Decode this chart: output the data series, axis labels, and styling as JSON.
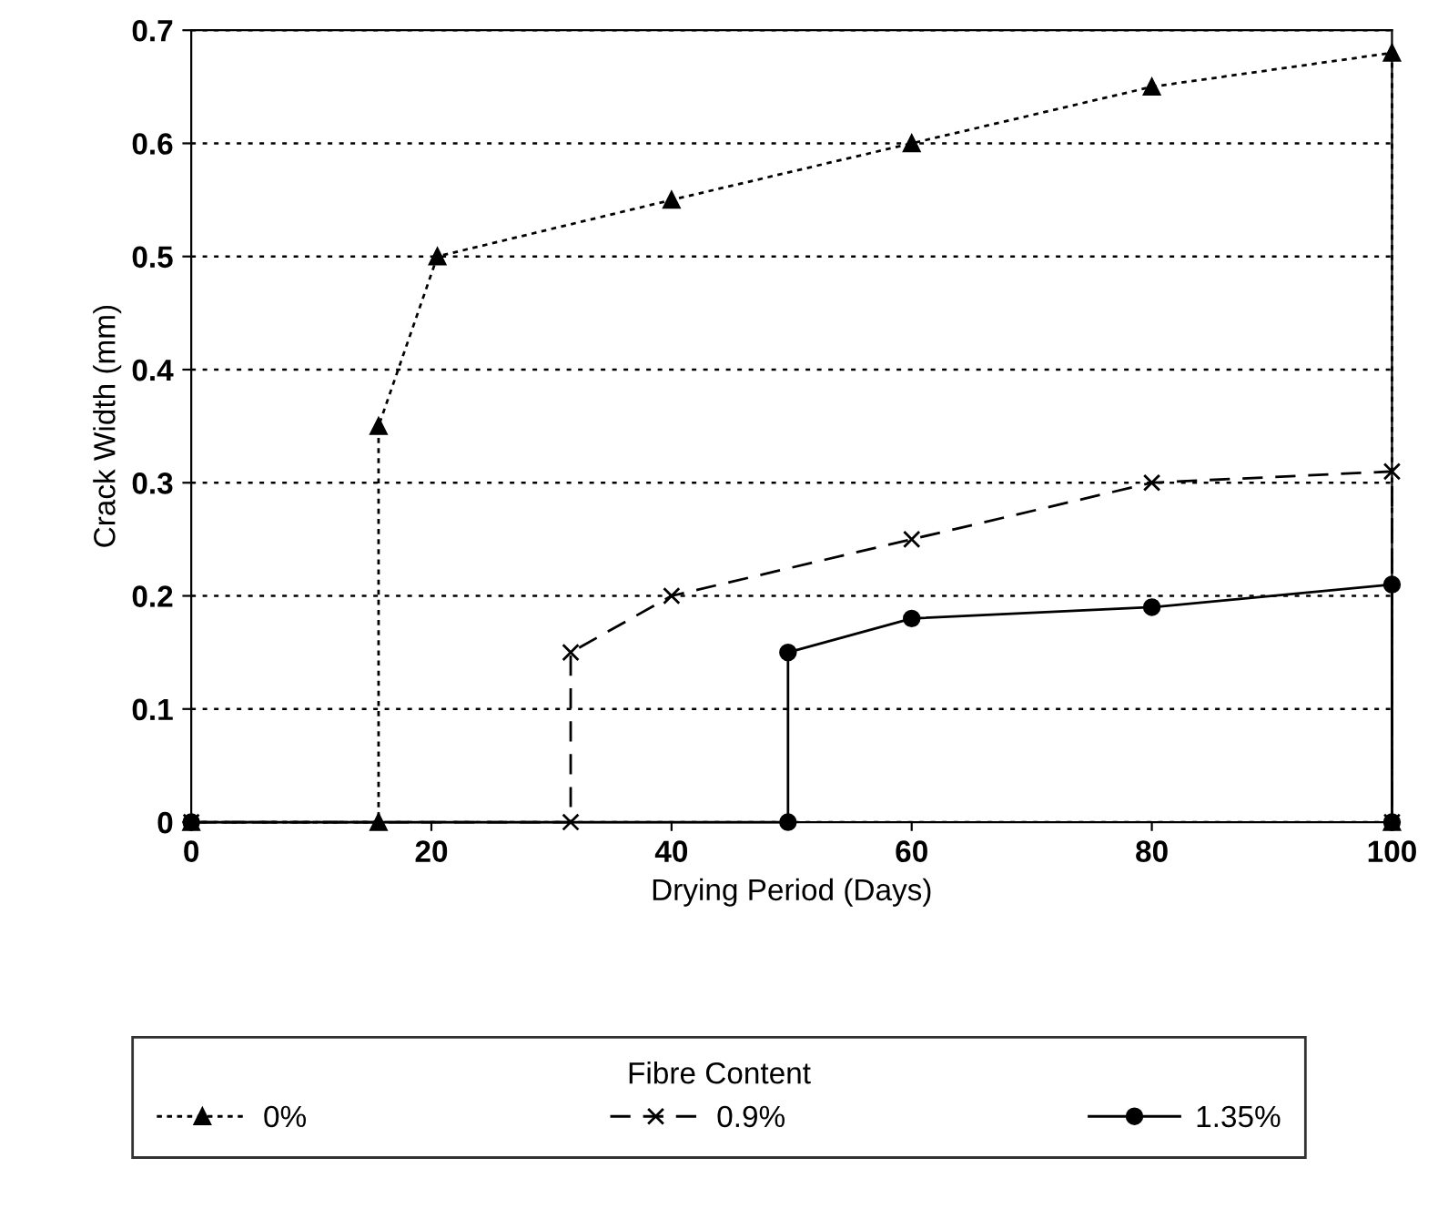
{
  "chart_data": {
    "type": "line",
    "xlabel": "Drying Period (Days)",
    "ylabel": "Crack Width (mm)",
    "legend_title": "Fibre Content",
    "legend": "bottom",
    "grid": "y",
    "xlim": [
      0,
      100
    ],
    "xticks": [
      0,
      20,
      40,
      60,
      80,
      100
    ],
    "ylim": [
      0,
      0.7
    ],
    "yticks": [
      0,
      0.1,
      0.2,
      0.3,
      0.4,
      0.5,
      0.6,
      0.7
    ],
    "series": [
      {
        "name": "0%",
        "color": "#000000",
        "marker": "triangle",
        "line_style": "dotted",
        "x": [
          0,
          15.6,
          15.6,
          20.5,
          40,
          60,
          80,
          100,
          100
        ],
        "values": [
          0,
          0,
          0.35,
          0.5,
          0.55,
          0.6,
          0.65,
          0.68,
          0
        ]
      },
      {
        "name": "0.9%",
        "color": "#000000",
        "marker": "cross",
        "line_style": "dashed",
        "x": [
          0,
          31.6,
          31.6,
          40,
          60,
          80,
          100,
          100
        ],
        "values": [
          0,
          0,
          0.15,
          0.2,
          0.25,
          0.3,
          0.31,
          0
        ]
      },
      {
        "name": "1.35%",
        "color": "#000000",
        "marker": "circle",
        "line_style": "solid",
        "x": [
          0,
          49.7,
          49.7,
          60,
          80,
          100,
          100
        ],
        "values": [
          0,
          0,
          0.15,
          0.18,
          0.19,
          0.21,
          0
        ]
      }
    ]
  }
}
